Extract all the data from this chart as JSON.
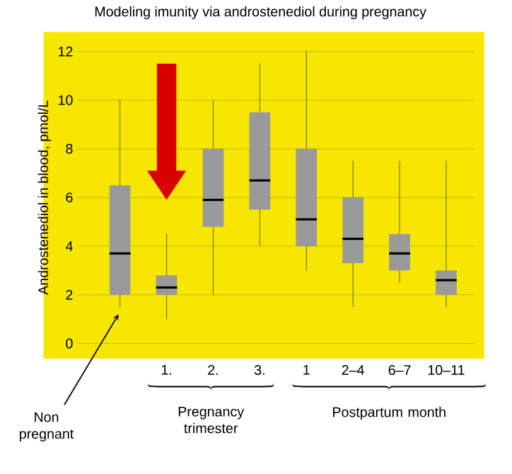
{
  "chart_data": {
    "type": "box",
    "title": "Modeling imunity via androstenediol during pregnancy",
    "ylabel": "Androstenediol in blood, pmol/L",
    "categories": [
      null,
      "1.",
      "2.",
      "3.",
      "1",
      "2–4",
      "6–7",
      "10–11"
    ],
    "boxes": [
      {
        "low": 1.5,
        "q1": 2,
        "median": 3.7,
        "q3": 6.5,
        "high": 10
      },
      {
        "low": 1,
        "q1": 2,
        "median": 2.3,
        "q3": 2.8,
        "high": 4.5
      },
      {
        "low": 2,
        "q1": 4.8,
        "median": 5.9,
        "q3": 8,
        "high": 10
      },
      {
        "low": 4,
        "q1": 5.5,
        "median": 6.7,
        "q3": 9.5,
        "high": 11.5
      },
      {
        "low": 3,
        "q1": 4,
        "median": 5.1,
        "q3": 8,
        "high": 12
      },
      {
        "low": 1.5,
        "q1": 3.3,
        "median": 4.3,
        "q3": 6,
        "high": 7.5
      },
      {
        "low": 2.5,
        "q1": 3,
        "median": 3.7,
        "q3": 4.5,
        "high": 7.5
      },
      {
        "low": 1.5,
        "q1": 2,
        "median": 2.6,
        "q3": 3,
        "high": 7.5
      }
    ],
    "color": "#9a9a9a",
    "ylim": [
      0,
      12
    ],
    "yticks": [
      0,
      2,
      4,
      6,
      8,
      10,
      12
    ],
    "grid": "y",
    "annotations": [
      "Non pregnant",
      "Pregnancy trimester",
      "Postpartum month"
    ]
  }
}
